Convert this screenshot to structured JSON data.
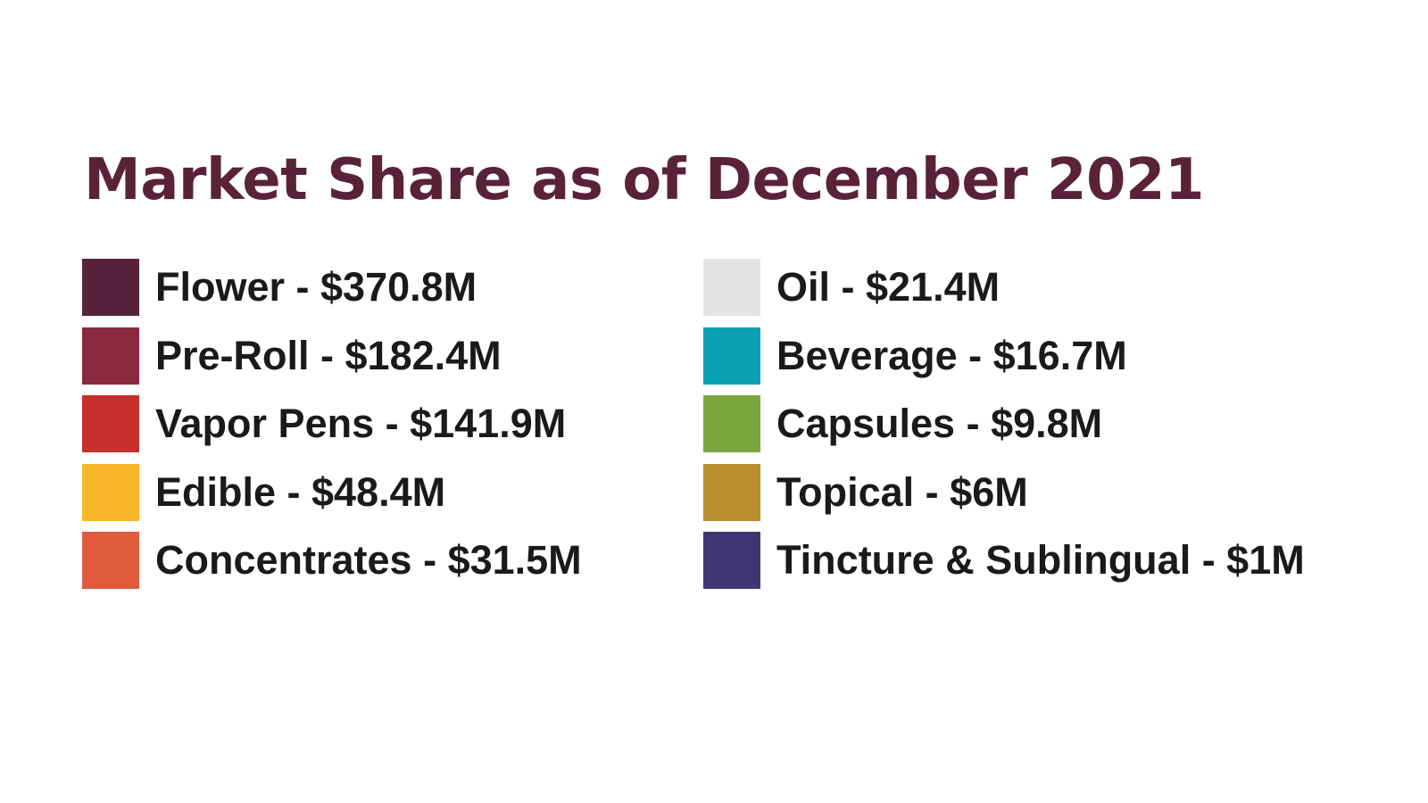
{
  "chart_data": {
    "type": "table",
    "title": "Market Share as of December 2021",
    "title_color": "#5a2238",
    "legend_placement": "two-column",
    "entries": [
      {
        "label": "Flower - $370.8M",
        "category": "Flower",
        "value": 370.8,
        "unit": "$M",
        "color": "#57223b"
      },
      {
        "label": "Pre-Roll - $182.4M",
        "category": "Pre-Roll",
        "value": 182.4,
        "unit": "$M",
        "color": "#8b2a3f"
      },
      {
        "label": "Vapor Pens - $141.9M",
        "category": "Vapor Pens",
        "value": 141.9,
        "unit": "$M",
        "color": "#c6302d"
      },
      {
        "label": "Edible - $48.4M",
        "category": "Edible",
        "value": 48.4,
        "unit": "$M",
        "color": "#f8b82a"
      },
      {
        "label": "Concentrates - $31.5M",
        "category": "Concentrates",
        "value": 31.5,
        "unit": "$M",
        "color": "#e05a3e"
      },
      {
        "label": "Oil - $21.4M",
        "category": "Oil",
        "value": 21.4,
        "unit": "$M",
        "color": "#e4e4e2"
      },
      {
        "label": "Beverage - $16.7M",
        "category": "Beverage",
        "value": 16.7,
        "unit": "$M",
        "color": "#0aa0b4"
      },
      {
        "label": "Capsules - $9.8M",
        "category": "Capsules",
        "value": 9.8,
        "unit": "$M",
        "color": "#7ba73f"
      },
      {
        "label": "Topical - $6M",
        "category": "Topical",
        "value": 6,
        "unit": "$M",
        "color": "#b88f2c"
      },
      {
        "label": "Tincture & Sublingual - $1M",
        "category": "Tincture & Sublingual",
        "value": 1,
        "unit": "$M",
        "color": "#3f3672"
      }
    ]
  }
}
